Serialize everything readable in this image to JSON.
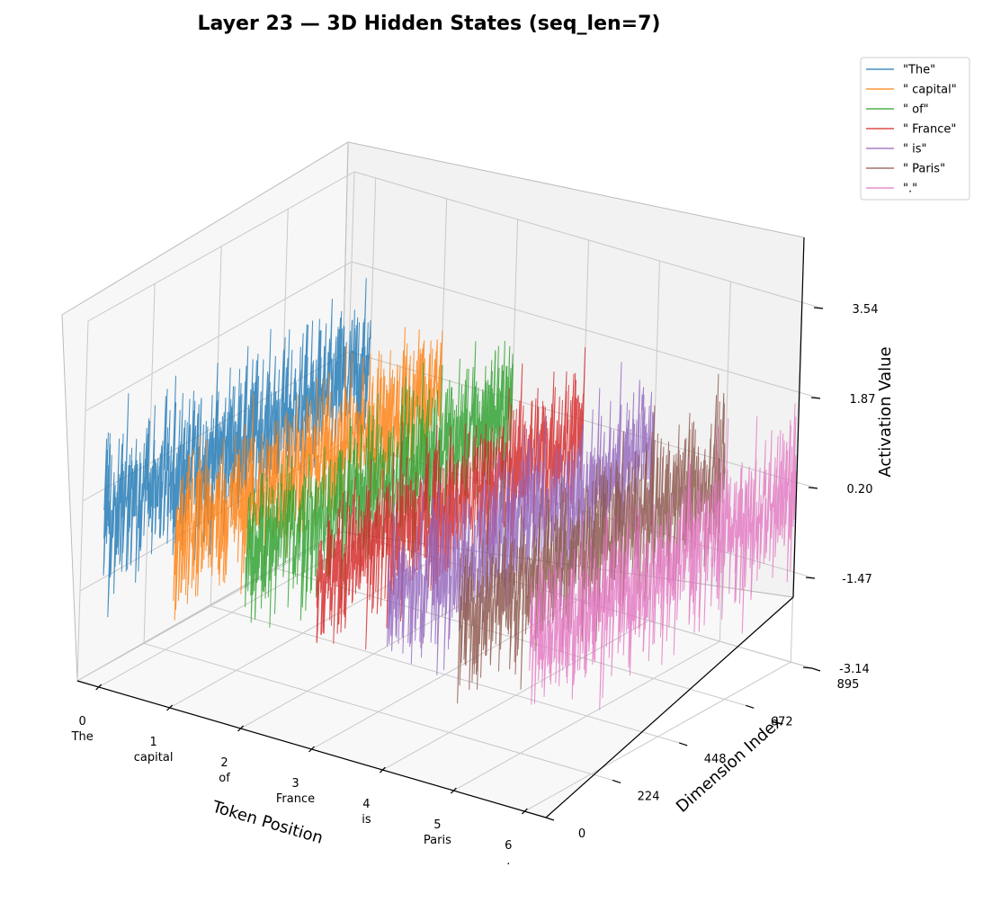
{
  "chart_data": {
    "type": "line",
    "projection": "3d",
    "title": "Layer 23 — 3D Hidden States (seq_len=7)",
    "xlabel": "Token Position",
    "ylabel": "Dimension Index",
    "zlabel": "Activation Value",
    "x_ticks": [
      {
        "value": 0,
        "label": "0",
        "sublabel": "The"
      },
      {
        "value": 1,
        "label": "1",
        "sublabel": "capital"
      },
      {
        "value": 2,
        "label": "2",
        "sublabel": "of"
      },
      {
        "value": 3,
        "label": "3",
        "sublabel": "France"
      },
      {
        "value": 4,
        "label": "4",
        "sublabel": "is"
      },
      {
        "value": 5,
        "label": "5",
        "sublabel": "Paris"
      },
      {
        "value": 6,
        "label": "6",
        "sublabel": "."
      }
    ],
    "y_ticks": [
      "0",
      "224",
      "448",
      "672",
      "895"
    ],
    "z_ticks": [
      "-3.14",
      "-1.47",
      "0.20",
      "1.87",
      "3.54"
    ],
    "xlim": [
      -0.3,
      6.3
    ],
    "ylim": [
      0,
      895
    ],
    "zlim": [
      -3.14,
      3.54
    ],
    "grid": true,
    "legend_position": "top-right",
    "series": [
      {
        "name": "\"The\"",
        "token_position": 0,
        "color": "#1f77b4",
        "dims": 896,
        "value_range": [
          -2.9,
          3.4
        ]
      },
      {
        "name": "\" capital\"",
        "token_position": 1,
        "color": "#ff7f0e",
        "dims": 896,
        "value_range": [
          -2.9,
          3.0
        ]
      },
      {
        "name": "\" of\"",
        "token_position": 2,
        "color": "#2ca02c",
        "dims": 896,
        "value_range": [
          -2.6,
          3.1
        ]
      },
      {
        "name": "\" France\"",
        "token_position": 3,
        "color": "#d62728",
        "dims": 896,
        "value_range": [
          -3.0,
          3.1
        ]
      },
      {
        "name": "\" is\"",
        "token_position": 4,
        "color": "#9467bd",
        "dims": 896,
        "value_range": [
          -3.0,
          2.9
        ]
      },
      {
        "name": "\" Paris\"",
        "token_position": 5,
        "color": "#8c564b",
        "dims": 896,
        "value_range": [
          -3.0,
          2.9
        ]
      },
      {
        "name": "\".\"",
        "token_position": 6,
        "color": "#e377c2",
        "dims": 896,
        "value_range": [
          -2.6,
          3.0
        ]
      }
    ]
  }
}
